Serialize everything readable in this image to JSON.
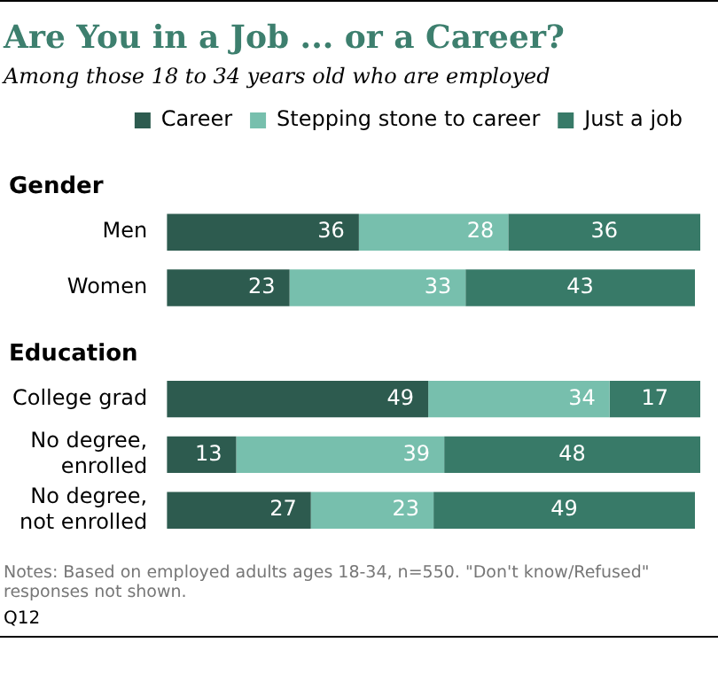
{
  "chart_data": {
    "type": "bar",
    "orientation": "horizontal",
    "stacked": true,
    "title": "Are You in a Job ... or a Career?",
    "subtitle": "Among those 18 to 34 years old who are employed",
    "categories": [
      null,
      "Men",
      "Women",
      null,
      "College grad",
      "No degree, enrolled",
      "No degree, not enrolled"
    ],
    "series": [
      {
        "name": "Career",
        "color": "#2d5b4f",
        "values": [
          null,
          36,
          23,
          null,
          49,
          13,
          27
        ]
      },
      {
        "name": "Stepping stone to career",
        "color": "#77bfad",
        "values": [
          null,
          28,
          33,
          null,
          34,
          39,
          23
        ]
      },
      {
        "name": "Just a job",
        "color": "#387a68",
        "values": [
          null,
          36,
          43,
          null,
          17,
          48,
          49
        ]
      }
    ],
    "annotations": [
      "Gender",
      "Education",
      "Notes: Based on employed adults ages 18-34, n=550. \"Don't know/Refused\" responses not shown.",
      "Q12"
    ],
    "data_labels": true,
    "legend": "top",
    "tick_labels": "y",
    "grid": false
  }
}
